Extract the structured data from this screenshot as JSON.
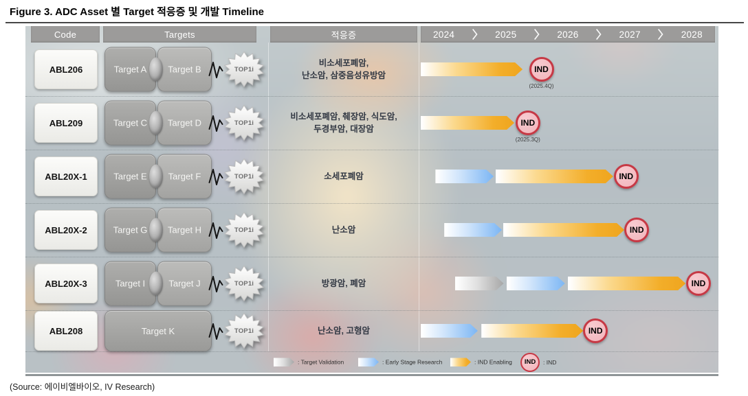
{
  "figure": {
    "title": "Figure 3. ADC Asset 별 Target 적응증 및 개발 Timeline",
    "source": "(Source:  에이비엘바이오, IV Research)"
  },
  "table": {
    "headers": {
      "code": "Code",
      "targets": "Targets",
      "indication": "적응증"
    },
    "years": [
      "2024",
      "2025",
      "2026",
      "2027",
      "2028"
    ]
  },
  "icons": {
    "year_separator": "chevron-right",
    "linker": "squiggle-line",
    "payload_badge": "starburst"
  },
  "colors": {
    "header_gray": "#9c9b9a",
    "enabling_orange": "#efa51e",
    "research_blue": "#7cb6f4",
    "validation_gray": "#a6a6a6",
    "ind_fill": "#f2b7be",
    "ind_border": "#c63945"
  },
  "legend": [
    {
      "type": "validation",
      "label": ": Target Validation"
    },
    {
      "type": "research",
      "label": ": Early Stage Research"
    },
    {
      "type": "enabling",
      "label": ": IND Enabling"
    },
    {
      "type": "ind",
      "label": ": IND"
    }
  ],
  "chart_data": {
    "type": "bar",
    "subtype": "gantt_timeline",
    "title": "ADC Asset 별 Target 적응증 및 개발 Timeline",
    "x_axis": {
      "ticks": [
        "2024",
        "2025",
        "2026",
        "2027",
        "2028"
      ],
      "range": [
        2024,
        2029
      ]
    },
    "ind_label": "IND",
    "phase_legend": {
      "validation": "Target Validation",
      "research": "Early Stage Research",
      "enabling": "IND Enabling"
    },
    "rows": [
      {
        "code": "ABL206",
        "targets": [
          "Target A",
          "Target B"
        ],
        "payload": "TOP1i",
        "indication_lines": [
          "비소세포폐암,",
          "난소암, 삼중음성유방암"
        ],
        "phases": [
          {
            "type": "enabling",
            "from": 2024.0,
            "to": 2025.73
          }
        ],
        "ind": {
          "at": 2026.05,
          "date": "(2025.4Q)"
        }
      },
      {
        "code": "ABL209",
        "targets": [
          "Target C",
          "Target D"
        ],
        "payload": "TOP1i",
        "indication_lines": [
          "비소세포폐암, 췌장암, 식도암,",
          "두경부암, 대장암"
        ],
        "phases": [
          {
            "type": "enabling",
            "from": 2024.0,
            "to": 2025.59
          }
        ],
        "ind": {
          "at": 2025.82,
          "date": "(2025.3Q)"
        }
      },
      {
        "code": "ABL20X-1",
        "targets": [
          "Target E",
          "Target F"
        ],
        "payload": "TOP1i",
        "indication_lines": [
          "소세포폐암"
        ],
        "phases": [
          {
            "type": "research",
            "from": 2024.25,
            "to": 2025.24
          },
          {
            "type": "enabling",
            "from": 2025.27,
            "to": 2027.27
          }
        ],
        "ind": {
          "at": 2027.49
        }
      },
      {
        "code": "ABL20X-2",
        "targets": [
          "Target G",
          "Target H"
        ],
        "payload": "TOP1i",
        "indication_lines": [
          "난소암"
        ],
        "phases": [
          {
            "type": "research",
            "from": 2024.4,
            "to": 2025.38
          },
          {
            "type": "enabling",
            "from": 2025.4,
            "to": 2027.46
          }
        ],
        "ind": {
          "at": 2027.67
        }
      },
      {
        "code": "ABL20X-3",
        "targets": [
          "Target I",
          "Target J"
        ],
        "payload": "TOP1i",
        "indication_lines": [
          "방광암, 폐암"
        ],
        "phases": [
          {
            "type": "validation",
            "from": 2024.58,
            "to": 2025.41
          },
          {
            "type": "research",
            "from": 2025.46,
            "to": 2026.45
          },
          {
            "type": "enabling",
            "from": 2026.5,
            "to": 2028.5
          }
        ],
        "ind": {
          "at": 2028.72
        }
      },
      {
        "code": "ABL208",
        "targets": [
          "Target K"
        ],
        "payload": "TOP1i",
        "indication_lines": [
          "난소암, 고형암"
        ],
        "phases": [
          {
            "type": "research",
            "from": 2024.0,
            "to": 2024.97
          },
          {
            "type": "enabling",
            "from": 2025.03,
            "to": 2026.76
          }
        ],
        "ind": {
          "at": 2026.97
        }
      }
    ]
  }
}
